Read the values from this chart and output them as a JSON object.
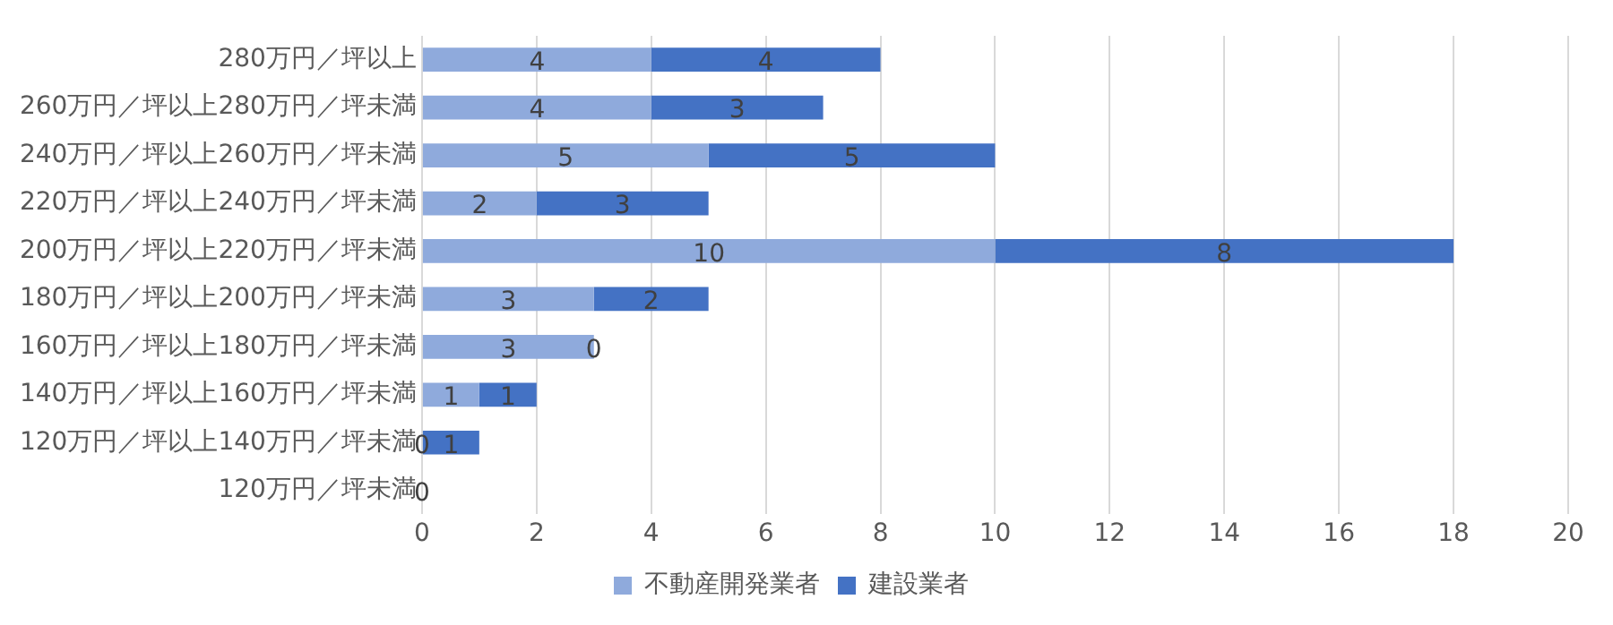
{
  "chart_data": {
    "type": "bar",
    "orientation": "horizontal",
    "stacked": true,
    "categories": [
      "280万円／坪以上",
      "260万円／坪以上280万円／坪未満",
      "240万円／坪以上260万円／坪未満",
      "220万円／坪以上240万円／坪未満",
      "200万円／坪以上220万円／坪未満",
      "180万円／坪以上200万円／坪未満",
      "160万円／坪以上180万円／坪未満",
      "140万円／坪以上160万円／坪未満",
      "120万円／坪以上140万円／坪未満",
      "120万円／坪未満"
    ],
    "series": [
      {
        "name": "不動産開発業者",
        "color": "#8faadc",
        "values": [
          4,
          4,
          5,
          2,
          10,
          3,
          3,
          1,
          0,
          0
        ]
      },
      {
        "name": "建設業者",
        "color": "#4472c4",
        "values": [
          4,
          3,
          5,
          3,
          8,
          2,
          0,
          1,
          1,
          null
        ]
      }
    ],
    "xlim": [
      0,
      20
    ],
    "xticks": [
      0,
      2,
      4,
      6,
      8,
      10,
      12,
      14,
      16,
      18,
      20
    ],
    "grid": "x",
    "legend": "bottom",
    "data_labels": true
  }
}
